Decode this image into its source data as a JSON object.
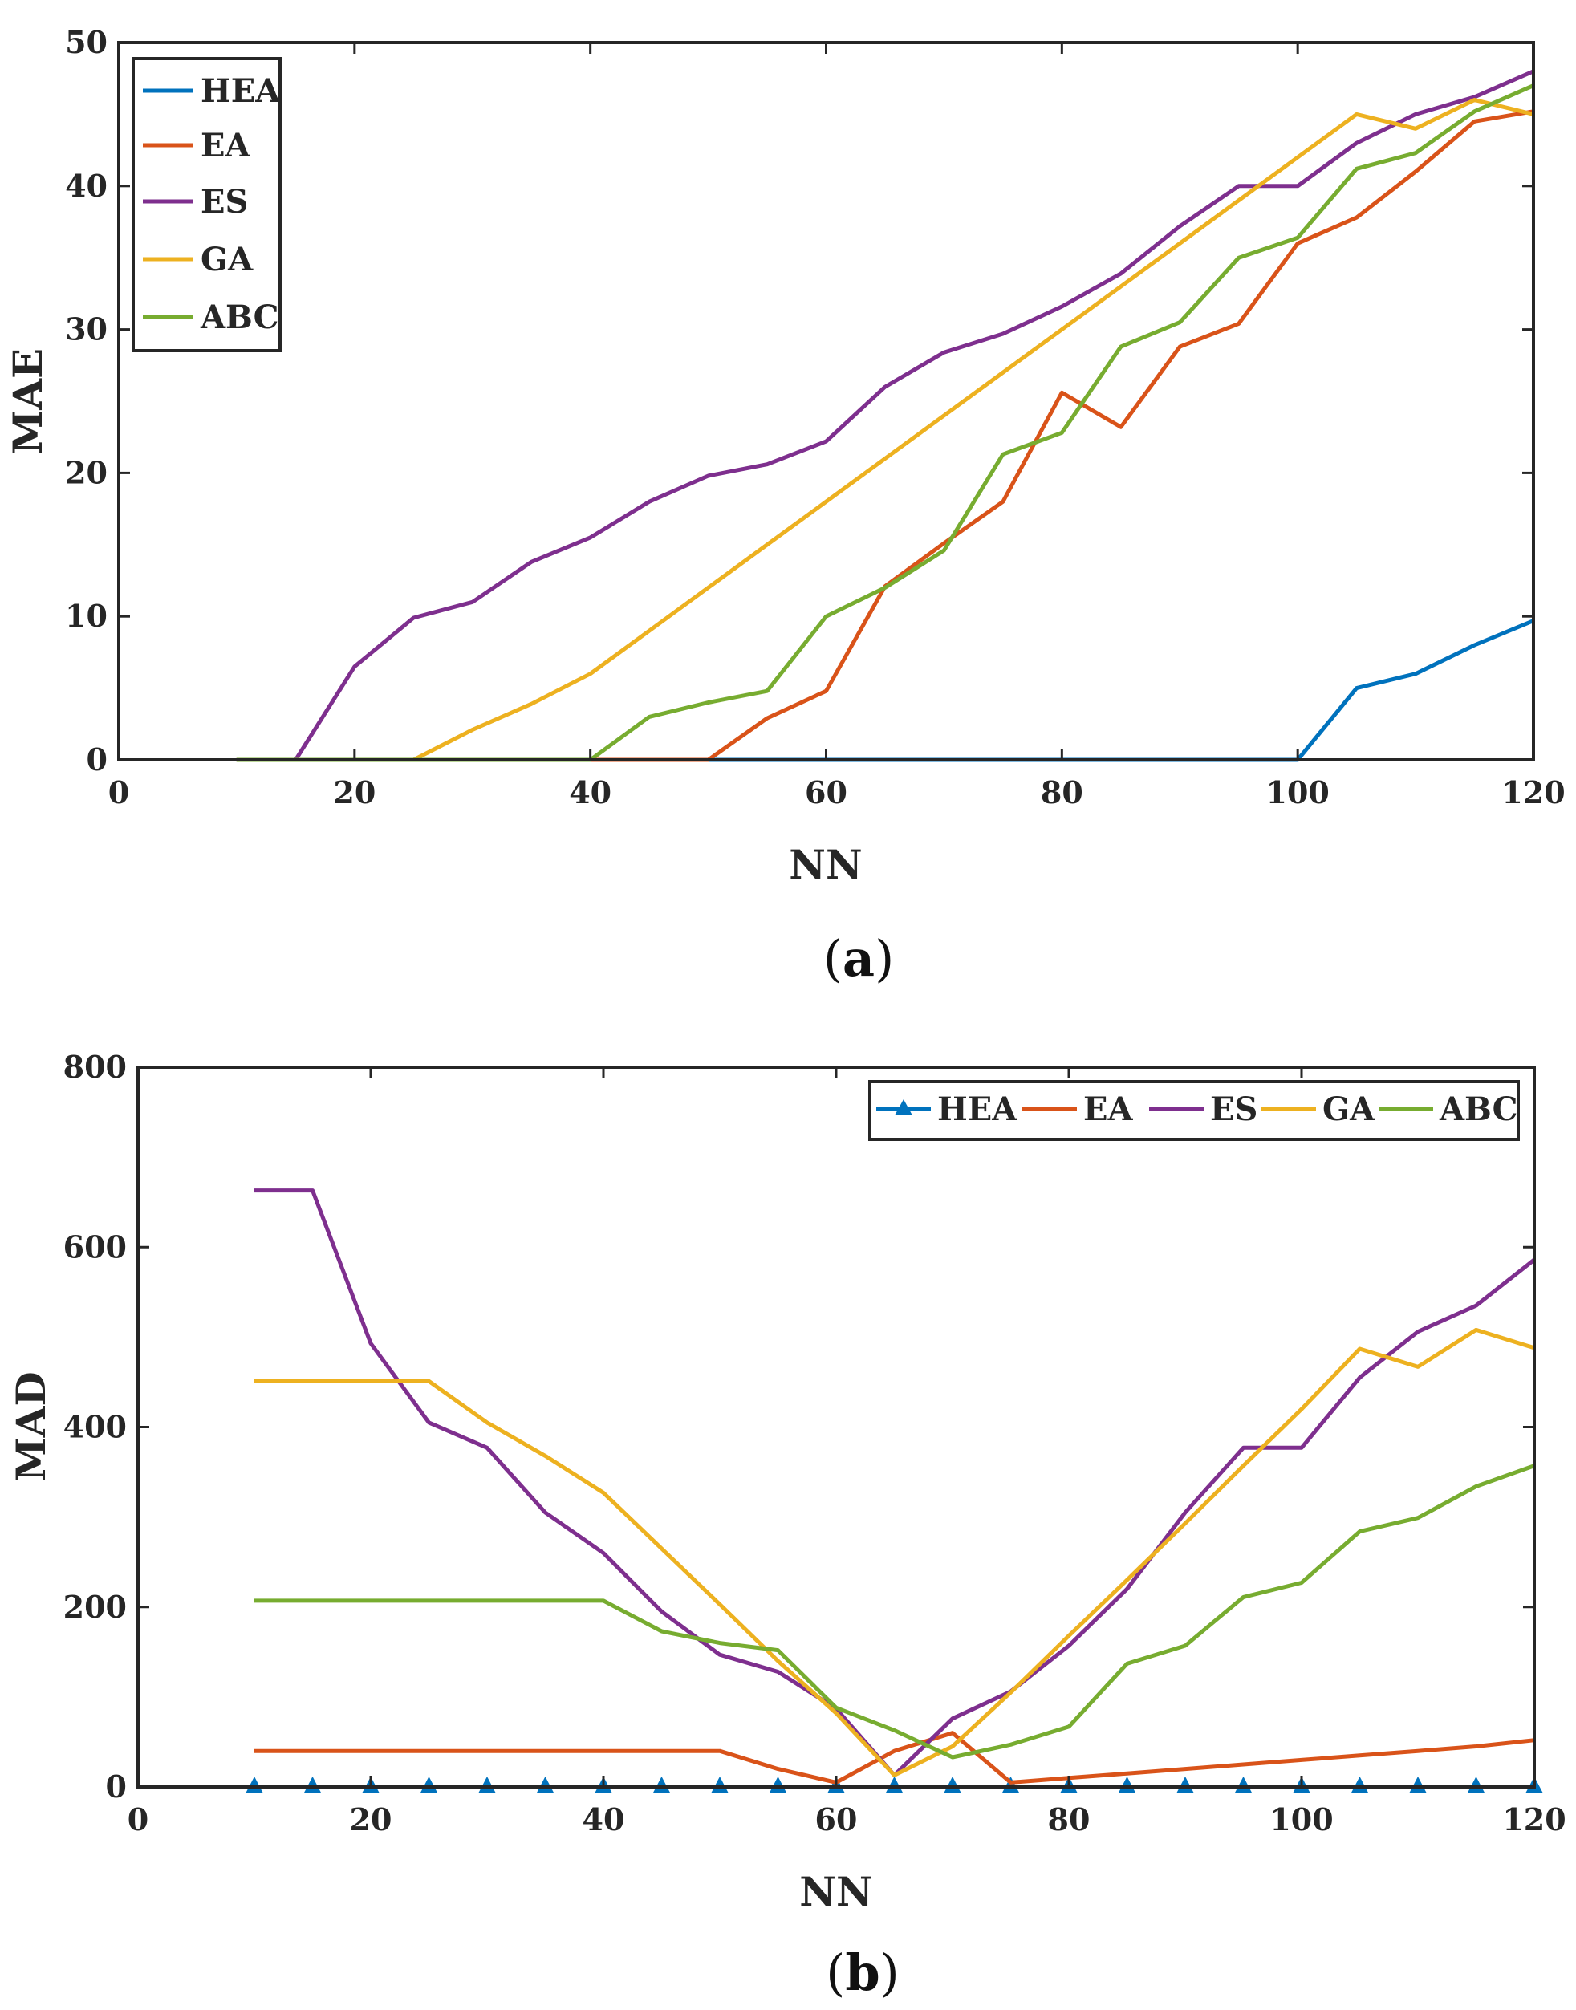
{
  "colors": {
    "HEA": "#0072BD",
    "EA": "#D95319",
    "ES": "#7E2F8E",
    "GA": "#EDB120",
    "ABC": "#77AC30",
    "axis": "#262626"
  },
  "chart_data": [
    {
      "id": "a",
      "type": "line",
      "caption_open": "(",
      "caption_letter": "a",
      "caption_close": ")",
      "xlabel": "NN",
      "ylabel": "MAE",
      "xlim": [
        0,
        120
      ],
      "ylim": [
        0,
        50
      ],
      "xticks": [
        0,
        20,
        40,
        60,
        80,
        100,
        120
      ],
      "yticks": [
        0,
        10,
        20,
        30,
        40,
        50
      ],
      "grid": false,
      "legend": {
        "placement": "top-left",
        "orientation": "vertical"
      },
      "x": [
        10,
        15,
        20,
        25,
        30,
        35,
        40,
        45,
        50,
        55,
        60,
        65,
        70,
        75,
        80,
        85,
        90,
        95,
        100,
        105,
        110,
        115,
        120
      ],
      "series": [
        {
          "name": "HEA",
          "marker": "none",
          "values": [
            0,
            0,
            0,
            0,
            0,
            0,
            0,
            0,
            0,
            0,
            0,
            0,
            0,
            0,
            0,
            0,
            0,
            0,
            0,
            5,
            6,
            8,
            9.7
          ]
        },
        {
          "name": "EA",
          "marker": "none",
          "values": [
            0,
            0,
            0,
            0,
            0,
            0,
            0,
            0,
            0,
            2.9,
            4.8,
            12.1,
            15.1,
            18,
            25.6,
            23.2,
            28.8,
            30.4,
            36,
            37.8,
            41,
            44.5,
            45.2
          ]
        },
        {
          "name": "ES",
          "marker": "none",
          "values": [
            0,
            0,
            6.5,
            9.9,
            11,
            13.8,
            15.5,
            18,
            19.8,
            20.6,
            22.2,
            26,
            28.4,
            29.7,
            31.6,
            33.9,
            37.2,
            40,
            40,
            43,
            45,
            46.2,
            48
          ]
        },
        {
          "name": "GA",
          "marker": "none",
          "values": [
            0,
            0,
            0,
            0,
            2.1,
            3.9,
            6,
            9,
            12,
            15,
            18,
            21,
            24,
            27,
            30,
            33,
            36,
            39,
            42,
            45,
            44,
            46,
            45
          ]
        },
        {
          "name": "ABC",
          "marker": "none",
          "values": [
            0,
            0,
            0,
            0,
            0,
            0,
            0,
            3,
            4,
            4.8,
            10,
            12,
            14.6,
            21.3,
            22.8,
            28.8,
            30.5,
            35,
            36.4,
            41.2,
            42.3,
            45.2,
            47
          ]
        }
      ]
    },
    {
      "id": "b",
      "type": "line",
      "caption_open": "(",
      "caption_letter": "b",
      "caption_close": ")",
      "xlabel": "NN",
      "ylabel": "MAD",
      "xlim": [
        0,
        120
      ],
      "ylim": [
        0,
        800
      ],
      "xticks": [
        0,
        20,
        40,
        60,
        80,
        100,
        120
      ],
      "yticks": [
        0,
        200,
        400,
        600,
        800
      ],
      "grid": false,
      "legend": {
        "placement": "top-right",
        "orientation": "horizontal"
      },
      "x": [
        10,
        15,
        20,
        25,
        30,
        35,
        40,
        45,
        50,
        55,
        60,
        65,
        70,
        75,
        80,
        85,
        90,
        95,
        100,
        105,
        110,
        115,
        120
      ],
      "series": [
        {
          "name": "HEA",
          "marker": "triangle",
          "values": [
            0,
            0,
            0,
            0,
            0,
            0,
            0,
            0,
            0,
            0,
            0,
            0,
            0,
            0,
            0,
            0,
            0,
            0,
            0,
            0,
            0,
            0,
            0
          ]
        },
        {
          "name": "EA",
          "marker": "none",
          "values": [
            40,
            40,
            40,
            40,
            40,
            40,
            40,
            40,
            40,
            20,
            5,
            40,
            60,
            5,
            10,
            15,
            20,
            25,
            30,
            35,
            40,
            45,
            52
          ]
        },
        {
          "name": "ES",
          "marker": "none",
          "values": [
            663,
            663,
            493,
            405,
            377,
            305,
            260,
            195,
            147,
            128,
            87,
            13,
            76,
            106,
            157,
            220,
            305,
            377,
            377,
            455,
            506,
            535,
            586
          ]
        },
        {
          "name": "GA",
          "marker": "none",
          "values": [
            451,
            451,
            451,
            451,
            405,
            368,
            327,
            265,
            203,
            140,
            82,
            13,
            45,
            105,
            168,
            230,
            293,
            357,
            420,
            487,
            467,
            508,
            488
          ]
        },
        {
          "name": "ABC",
          "marker": "none",
          "values": [
            207,
            207,
            207,
            207,
            207,
            207,
            207,
            173,
            160,
            152,
            88,
            63,
            33,
            47,
            67,
            137,
            157,
            211,
            227,
            284,
            299,
            334,
            357
          ]
        }
      ]
    }
  ]
}
